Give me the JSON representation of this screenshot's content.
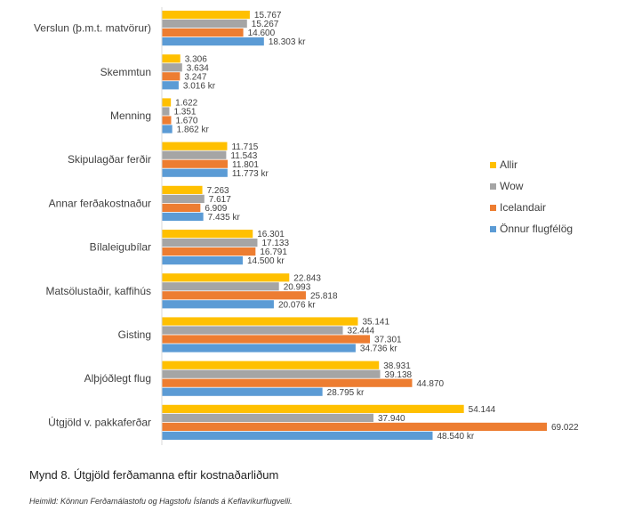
{
  "caption": "Mynd 8.  Útgjöld ferðamanna eftir kostnaðarliðum",
  "source": "Heimild: Könnun Ferðamálastofu og Hagstofu Íslands á Keflavíkurflugvelli.",
  "chart_data": {
    "type": "bar",
    "orientation": "horizontal",
    "categories": [
      "Verslun (þ.m.t. matvörur)",
      "Skemmtun",
      "Menning",
      "Skipulagðar ferðir",
      "Annar ferðakostnaður",
      "Bílaleigubílar",
      "Matsölustaðir, kaffihús",
      "Gisting",
      "Alþjóðlegt flug",
      "Útgjöld v. pakkaferðar"
    ],
    "series": [
      {
        "name": "Allir",
        "color": "#FFC000",
        "values": [
          15767,
          3306,
          1622,
          11715,
          7263,
          16301,
          22843,
          35141,
          38931,
          54144
        ],
        "labels": [
          "15.767",
          "3.306",
          "1.622",
          "11.715",
          "7.263",
          "16.301",
          "22.843",
          "35.141",
          "38.931",
          "54.144"
        ]
      },
      {
        "name": "Wow",
        "color": "#A5A5A5",
        "values": [
          15267,
          3634,
          1351,
          11543,
          7617,
          17133,
          20993,
          32444,
          39138,
          37940
        ],
        "labels": [
          "15.267",
          "3.634",
          "1.351",
          "11.543",
          "7.617",
          "17.133",
          "20.993",
          "32.444",
          "39.138",
          "37.940"
        ]
      },
      {
        "name": "Icelandair",
        "color": "#ED7D31",
        "values": [
          14600,
          3247,
          1670,
          11801,
          6909,
          16791,
          25818,
          37301,
          44870,
          69022
        ],
        "labels": [
          "14.600",
          "3.247",
          "1.670",
          "11.801",
          "6.909",
          "16.791",
          "25.818",
          "37.301",
          "44.870",
          "69.022"
        ]
      },
      {
        "name": "Önnur flugfélög",
        "color": "#5B9BD5",
        "values": [
          18303,
          3016,
          1862,
          11773,
          7435,
          14500,
          20076,
          34736,
          28795,
          48540
        ],
        "labels": [
          "18.303 kr",
          "3.016 kr",
          "1.862 kr",
          "11.773 kr",
          "7.435 kr",
          "14.500 kr",
          "20.076 kr",
          "34.736 kr",
          "28.795 kr",
          "48.540 kr"
        ]
      }
    ],
    "xlim": [
      0,
      70000
    ],
    "legend_position": "right",
    "grid": false
  }
}
